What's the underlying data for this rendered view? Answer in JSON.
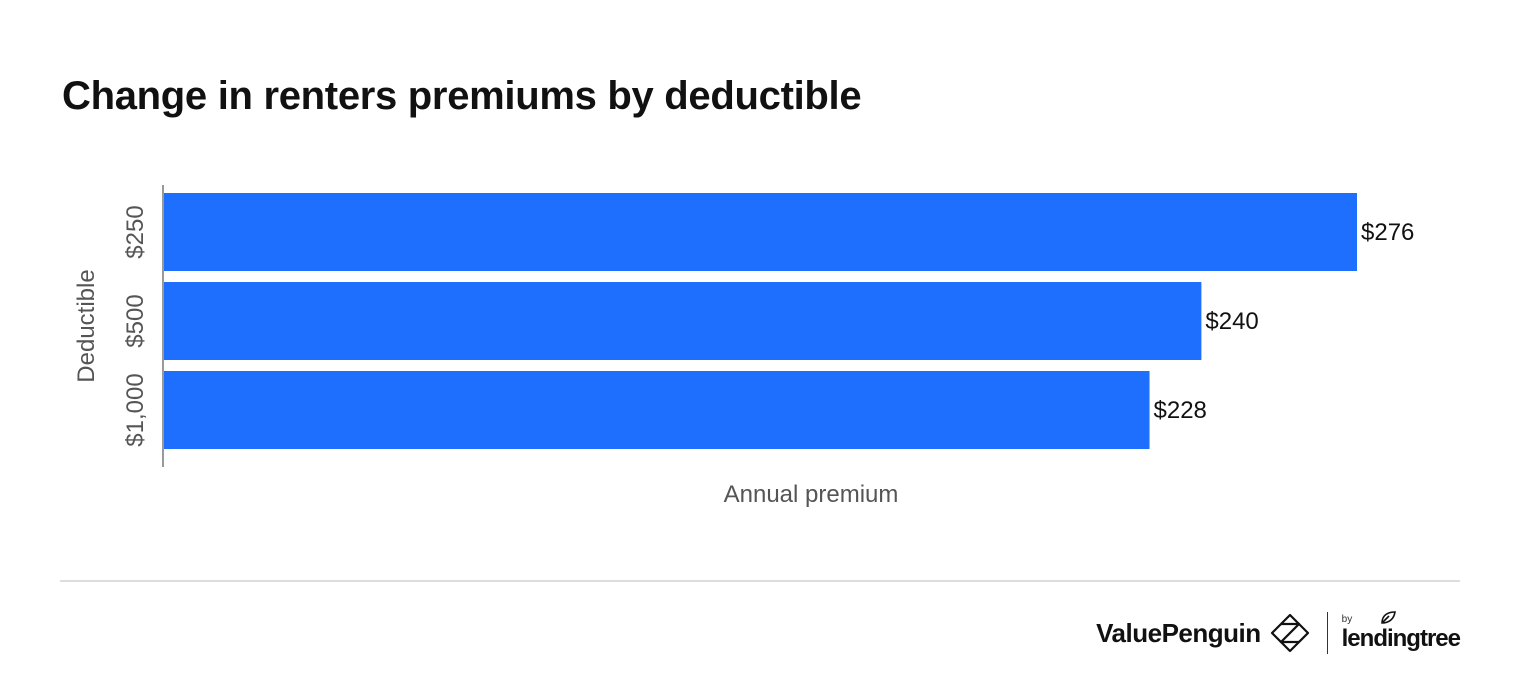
{
  "chart_data": {
    "type": "bar",
    "orientation": "horizontal",
    "title": "Change in renters premiums by deductible",
    "xlabel": "Annual premium",
    "ylabel": "Deductible",
    "categories": [
      "$250",
      "$500",
      "$1,000"
    ],
    "values": [
      276,
      240,
      228
    ],
    "data_labels": [
      "$276",
      "$240",
      "$228"
    ],
    "xlim": [
      0,
      276
    ],
    "bar_color": "#1f6fff",
    "grid": false,
    "legend": "none"
  },
  "footer": {
    "brand": "ValuePenguin",
    "partner_prefix": "by",
    "partner": "lendingtree",
    "brand_icon": "valuepenguin-logo-icon",
    "partner_icon": "leaf-icon"
  }
}
